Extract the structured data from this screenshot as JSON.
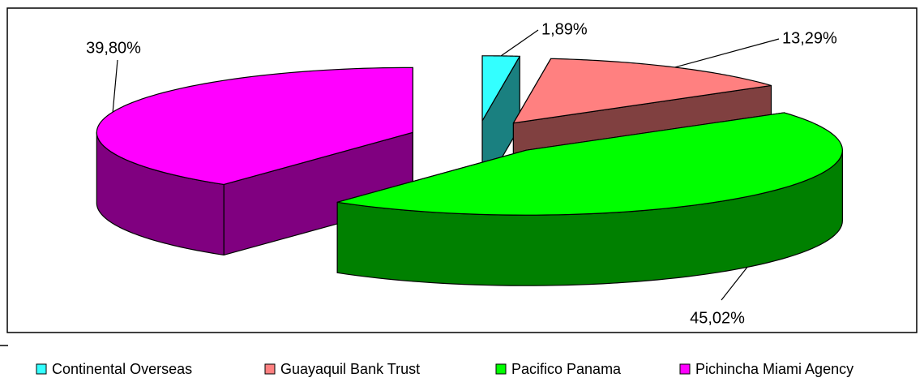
{
  "chart_data": {
    "type": "pie",
    "categories": [
      "Continental Overseas",
      "Guayaquil Bank Trust",
      "Pacifico Panama",
      "Pichincha Miami Agency"
    ],
    "values": [
      1.89,
      13.29,
      45.02,
      39.8
    ],
    "value_labels": [
      "1,89%",
      "13,29%",
      "45,02%",
      "39,80%"
    ],
    "colors": [
      "#33ffff",
      "#ff8080",
      "#00ff00",
      "#ff00ff"
    ]
  }
}
